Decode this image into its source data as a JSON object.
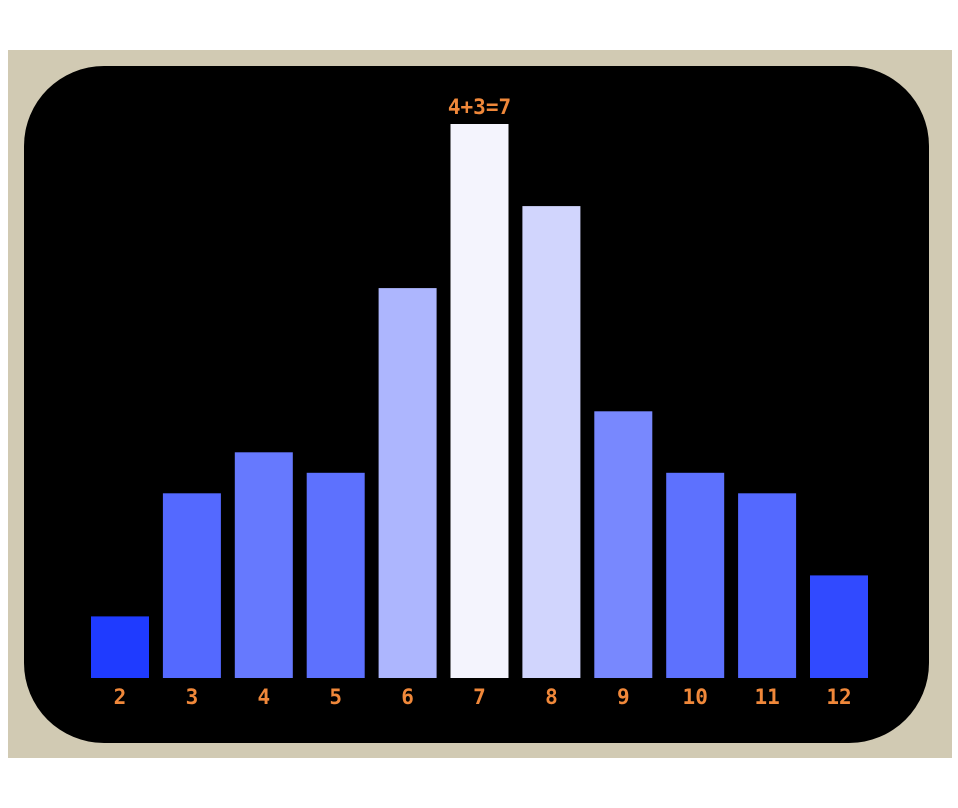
{
  "chart_data": {
    "type": "bar",
    "title": "",
    "xlabel": "",
    "ylabel": "",
    "categories": [
      "2",
      "3",
      "4",
      "5",
      "6",
      "7",
      "8",
      "9",
      "10",
      "11",
      "12"
    ],
    "values": [
      3,
      9,
      11,
      10,
      19,
      27,
      23,
      13,
      10,
      9,
      5
    ],
    "ylim": [
      0,
      27
    ],
    "grid": false,
    "legend": "none",
    "highlight": {
      "category": "7",
      "annotation": "4+3=7"
    }
  },
  "colors": {
    "bezel": "#d1cab3",
    "screen": "#000000",
    "label": "#f0883a",
    "bar_low": "#1f3bff",
    "bar_high": "#f4f4fd"
  }
}
